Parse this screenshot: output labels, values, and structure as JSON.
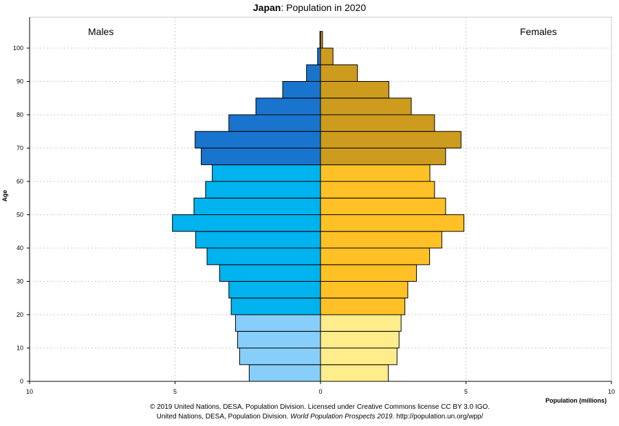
{
  "title_bold": "Japan",
  "title_rest": ": Population in 2020",
  "labels": {
    "males": "Males",
    "females": "Females"
  },
  "axis": {
    "x_title": "Population (millions)",
    "y_title": "Age"
  },
  "credit": {
    "line1": "© 2019 United Nations, DESA, Population Division. Licensed under Creative Commons license CC BY 3.0 IGO.",
    "line2_a": "United Nations, DESA, Population Division. ",
    "line2_b": "World Population Prospects 2019",
    "line2_c": ". http://population.un.org/wpp/"
  },
  "chart_data": {
    "type": "bar",
    "orientation": "horizontal",
    "title": "Japan: Population in 2020",
    "xlabel": "Population (millions)",
    "ylabel": "Age",
    "xlim": [
      -10,
      10
    ],
    "x_ticks": [
      {
        "value": -10,
        "label": "10"
      },
      {
        "value": -5,
        "label": "5"
      },
      {
        "value": 0,
        "label": "0"
      },
      {
        "value": 5,
        "label": "5"
      },
      {
        "value": 10,
        "label": "10"
      }
    ],
    "ylim": [
      0,
      105
    ],
    "y_ticks": [
      0,
      10,
      20,
      30,
      40,
      50,
      60,
      70,
      80,
      90,
      100
    ],
    "grid": true,
    "age_groups": [
      "0-4",
      "5-9",
      "10-14",
      "15-19",
      "20-24",
      "25-29",
      "30-34",
      "35-39",
      "40-44",
      "45-49",
      "50-54",
      "55-59",
      "60-64",
      "65-69",
      "70-74",
      "75-79",
      "80-84",
      "85-89",
      "90-94",
      "95-99",
      "100+"
    ],
    "series": [
      {
        "name": "Males",
        "values": [
          2.45,
          2.78,
          2.85,
          2.92,
          3.07,
          3.15,
          3.47,
          3.9,
          4.29,
          5.09,
          4.35,
          3.95,
          3.72,
          4.1,
          4.31,
          3.15,
          2.22,
          1.3,
          0.48,
          0.1,
          0.02
        ]
      },
      {
        "name": "Females",
        "values": [
          2.33,
          2.63,
          2.7,
          2.77,
          2.9,
          3.0,
          3.3,
          3.75,
          4.17,
          4.93,
          4.3,
          3.92,
          3.76,
          4.3,
          4.83,
          3.92,
          3.12,
          2.35,
          1.27,
          0.43,
          0.07
        ]
      }
    ],
    "colors": {
      "male_young": "#87cefa",
      "male_working": "#00b2ee",
      "male_old": "#1874cd",
      "female_young": "#ffec8b",
      "female_working": "#ffc125",
      "female_old": "#cd9b1d",
      "outline": "#000000",
      "grid": "#c8c8c8"
    }
  }
}
